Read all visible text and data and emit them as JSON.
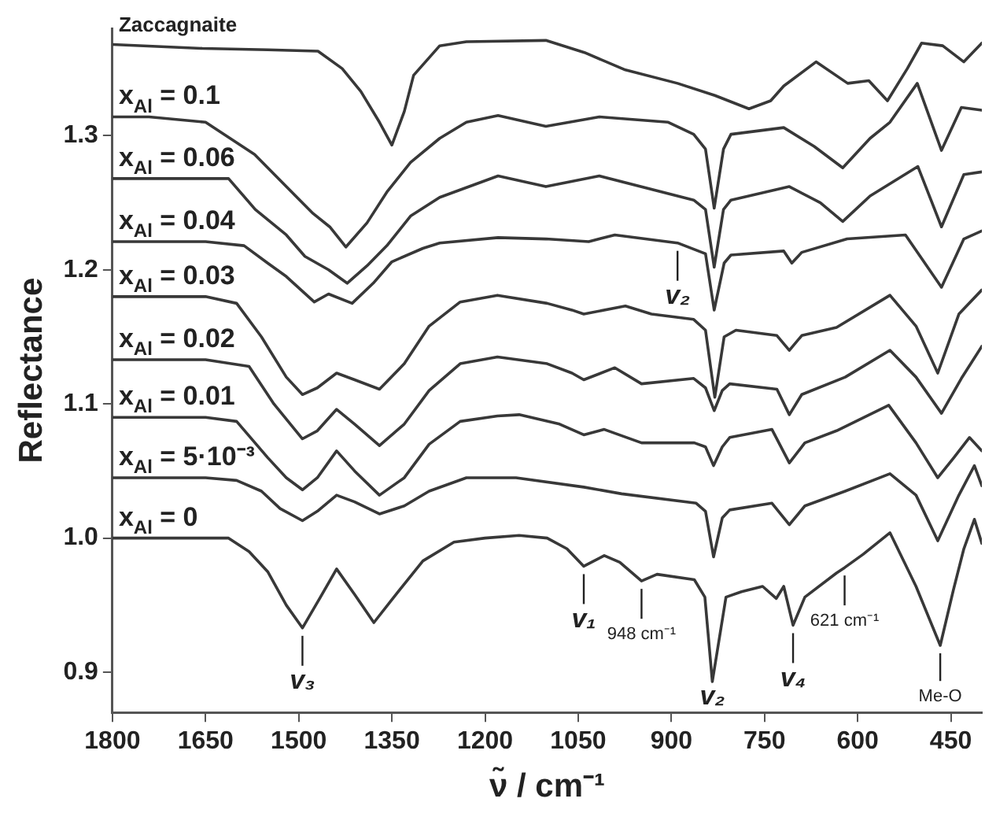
{
  "chart_data": {
    "type": "line",
    "xlabel": "ν̃ / cm⁻¹",
    "ylabel": "Reflectance",
    "xlim": [
      1800,
      400
    ],
    "xticks": [
      1800,
      1650,
      1500,
      1350,
      1200,
      1050,
      900,
      750,
      600,
      450
    ],
    "ylim": [
      0.87,
      1.38
    ],
    "yticks": [
      0.9,
      {
        "value": 1.0,
        "label": "1.0"
      },
      1.1,
      1.2,
      1.3
    ],
    "legend": false,
    "grid": false,
    "series": [
      {
        "name": "Zaccagnaite",
        "color": "#383838",
        "x": [
          1800,
          1655,
          1550,
          1469,
          1430,
          1400,
          1370,
          1350,
          1330,
          1315,
          1273,
          1230,
          1102,
          1040,
          974,
          890,
          830,
          775,
          740,
          719,
          667,
          616,
          582,
          552,
          520,
          497,
          463,
          429,
          400
        ],
        "values": [
          1.368,
          1.365,
          1.364,
          1.363,
          1.35,
          1.333,
          1.31,
          1.293,
          1.318,
          1.345,
          1.367,
          1.37,
          1.371,
          1.362,
          1.349,
          1.339,
          1.33,
          1.32,
          1.326,
          1.337,
          1.355,
          1.339,
          1.341,
          1.326,
          1.35,
          1.369,
          1.367,
          1.355,
          1.369
        ]
      },
      {
        "name": "x$_{Al}$ = 0.1",
        "color": "#383838",
        "x": [
          1800,
          1741,
          1650,
          1571,
          1520,
          1477,
          1450,
          1424,
          1390,
          1358,
          1320,
          1273,
          1230,
          1179,
          1102,
          1016,
          905,
          864,
          845,
          831,
          816,
          804,
          719,
          670,
          624,
          580,
          548,
          504,
          465,
          433,
          400
        ],
        "values": [
          1.314,
          1.314,
          1.31,
          1.286,
          1.262,
          1.242,
          1.232,
          1.217,
          1.235,
          1.258,
          1.28,
          1.298,
          1.31,
          1.315,
          1.307,
          1.314,
          1.31,
          1.301,
          1.29,
          1.246,
          1.29,
          1.301,
          1.306,
          1.292,
          1.276,
          1.298,
          1.31,
          1.339,
          1.289,
          1.321,
          1.319
        ]
      },
      {
        "name": "x$_{Al}$ = 0.06",
        "color": "#383838",
        "x": [
          1800,
          1613,
          1570,
          1520,
          1490,
          1452,
          1422,
          1390,
          1358,
          1320,
          1273,
          1179,
          1102,
          1016,
          864,
          845,
          831,
          816,
          804,
          710,
          660,
          624,
          580,
          503,
          465,
          429,
          400
        ],
        "values": [
          1.268,
          1.268,
          1.245,
          1.226,
          1.21,
          1.2,
          1.19,
          1.203,
          1.218,
          1.24,
          1.254,
          1.27,
          1.262,
          1.27,
          1.252,
          1.245,
          1.202,
          1.245,
          1.252,
          1.262,
          1.25,
          1.236,
          1.255,
          1.277,
          1.232,
          1.271,
          1.273
        ]
      },
      {
        "name": "x$_{Al}$ = 0.04",
        "color": "#383838",
        "x": [
          1800,
          1650,
          1588,
          1550,
          1520,
          1475,
          1452,
          1414,
          1380,
          1350,
          1300,
          1273,
          1179,
          1102,
          1033,
          991,
          890,
          845,
          831,
          815,
          804,
          719,
          706,
          690,
          617,
          523,
          465,
          429,
          400
        ],
        "values": [
          1.221,
          1.221,
          1.218,
          1.205,
          1.195,
          1.176,
          1.182,
          1.175,
          1.19,
          1.206,
          1.216,
          1.22,
          1.224,
          1.223,
          1.221,
          1.226,
          1.22,
          1.212,
          1.17,
          1.205,
          1.211,
          1.214,
          1.205,
          1.213,
          1.223,
          1.226,
          1.187,
          1.223,
          1.229
        ]
      },
      {
        "name": "x$_{Al}$ = 0.03",
        "color": "#383838",
        "x": [
          1800,
          1650,
          1600,
          1560,
          1520,
          1494,
          1470,
          1439,
          1410,
          1370,
          1330,
          1290,
          1240,
          1180,
          1100,
          1060,
          1041,
          974,
          932,
          864,
          845,
          830,
          815,
          796,
          730,
          710,
          690,
          634,
          548,
          506,
          471,
          437,
          400
        ],
        "values": [
          1.18,
          1.18,
          1.175,
          1.15,
          1.12,
          1.107,
          1.112,
          1.123,
          1.118,
          1.111,
          1.13,
          1.158,
          1.176,
          1.181,
          1.175,
          1.17,
          1.167,
          1.173,
          1.167,
          1.163,
          1.155,
          1.105,
          1.15,
          1.155,
          1.151,
          1.14,
          1.151,
          1.157,
          1.181,
          1.158,
          1.123,
          1.167,
          1.185
        ]
      },
      {
        "name": "x$_{Al}$ = 0.02",
        "color": "#383838",
        "x": [
          1800,
          1650,
          1580,
          1540,
          1494,
          1470,
          1439,
          1410,
          1370,
          1330,
          1290,
          1240,
          1180,
          1100,
          1060,
          1041,
          991,
          948,
          864,
          845,
          831,
          818,
          806,
          730,
          710,
          690,
          620,
          548,
          506,
          465,
          433,
          400
        ],
        "values": [
          1.133,
          1.133,
          1.128,
          1.1,
          1.074,
          1.08,
          1.096,
          1.085,
          1.069,
          1.085,
          1.11,
          1.13,
          1.135,
          1.13,
          1.123,
          1.118,
          1.127,
          1.115,
          1.119,
          1.112,
          1.095,
          1.11,
          1.115,
          1.111,
          1.092,
          1.107,
          1.12,
          1.14,
          1.12,
          1.093,
          1.119,
          1.143
        ]
      },
      {
        "name": "x$_{Al}$ = 0.01",
        "color": "#383838",
        "x": [
          1800,
          1650,
          1600,
          1550,
          1520,
          1494,
          1470,
          1439,
          1410,
          1370,
          1330,
          1290,
          1240,
          1180,
          1145,
          1080,
          1041,
          1008,
          948,
          863,
          845,
          832,
          818,
          806,
          738,
          710,
          685,
          634,
          550,
          506,
          471,
          445,
          420,
          400
        ],
        "values": [
          1.09,
          1.09,
          1.087,
          1.06,
          1.045,
          1.036,
          1.045,
          1.065,
          1.05,
          1.032,
          1.045,
          1.07,
          1.087,
          1.091,
          1.092,
          1.085,
          1.077,
          1.081,
          1.071,
          1.071,
          1.068,
          1.054,
          1.068,
          1.075,
          1.081,
          1.056,
          1.071,
          1.08,
          1.099,
          1.071,
          1.045,
          1.06,
          1.075,
          1.065
        ]
      },
      {
        "name": "x$_{Al}$ = 5·10⁻³",
        "color": "#383838",
        "x": [
          1800,
          1650,
          1600,
          1560,
          1530,
          1494,
          1470,
          1439,
          1410,
          1370,
          1330,
          1290,
          1230,
          1150,
          1041,
          980,
          860,
          845,
          832,
          818,
          806,
          738,
          710,
          685,
          620,
          548,
          506,
          471,
          437,
          412,
          400
        ],
        "values": [
          1.045,
          1.045,
          1.043,
          1.035,
          1.022,
          1.013,
          1.02,
          1.032,
          1.027,
          1.018,
          1.024,
          1.035,
          1.045,
          1.045,
          1.038,
          1.033,
          1.026,
          1.02,
          0.986,
          1.015,
          1.021,
          1.026,
          1.01,
          1.024,
          1.035,
          1.048,
          1.032,
          0.998,
          1.032,
          1.054,
          1.039
        ]
      },
      {
        "name": "x$_{Al}$ = 0",
        "color": "#383838",
        "x": [
          1800,
          1700,
          1613,
          1580,
          1550,
          1520,
          1494,
          1470,
          1439,
          1410,
          1379,
          1340,
          1300,
          1250,
          1200,
          1145,
          1100,
          1068,
          1041,
          1008,
          983,
          948,
          923,
          863,
          846,
          834,
          812,
          787,
          753,
          731,
          719,
          704,
          685,
          634,
          621,
          591,
          548,
          506,
          467,
          446,
          429,
          412,
          400
        ],
        "values": [
          1.0,
          1.0,
          1.0,
          0.99,
          0.975,
          0.95,
          0.933,
          0.952,
          0.977,
          0.958,
          0.937,
          0.96,
          0.983,
          0.997,
          1.0,
          1.002,
          1.0,
          0.992,
          0.979,
          0.987,
          0.982,
          0.968,
          0.973,
          0.969,
          0.956,
          0.893,
          0.956,
          0.96,
          0.964,
          0.955,
          0.964,
          0.935,
          0.956,
          0.974,
          0.978,
          0.988,
          1.004,
          0.964,
          0.92,
          0.961,
          0.992,
          1.014,
          0.996
        ]
      }
    ],
    "annotations": [
      {
        "text": "v₃",
        "x": 1494,
        "y": 0.933
      },
      {
        "text": "v₁",
        "x": 1041,
        "y": 0.979
      },
      {
        "text": "948 cm⁻¹",
        "x": 948,
        "y": 0.968
      },
      {
        "text": "v₂",
        "x": 834,
        "y": 0.893
      },
      {
        "text": "v₄",
        "x": 704,
        "y": 0.935
      },
      {
        "text": "621 cm⁻¹",
        "x": 621,
        "y": 0.978
      },
      {
        "text": "Me-O",
        "x": 467,
        "y": 0.92
      },
      {
        "text": "v₂",
        "x": 890,
        "y": 1.22
      }
    ]
  }
}
